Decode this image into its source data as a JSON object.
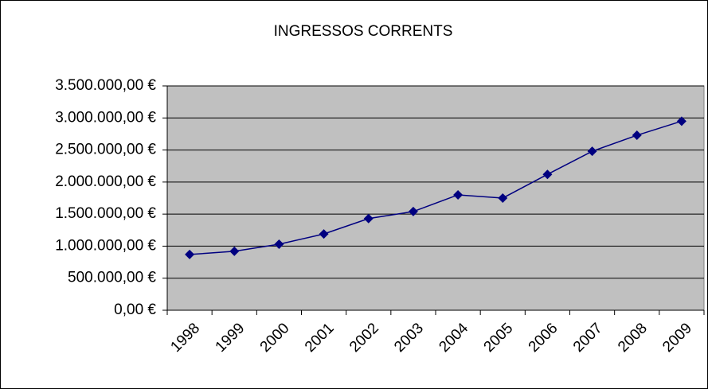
{
  "chart_data": {
    "type": "line",
    "title": "INGRESSOS CORRENTS",
    "categories": [
      "1998",
      "1999",
      "2000",
      "2001",
      "2002",
      "2003",
      "2004",
      "2005",
      "2006",
      "2007",
      "2008",
      "2009"
    ],
    "series": [
      {
        "name": "Ingressos corrents",
        "color": "#000080",
        "values": [
          870000,
          920000,
          1030000,
          1190000,
          1430000,
          1540000,
          1800000,
          1750000,
          2120000,
          2480000,
          2730000,
          2950000
        ]
      }
    ],
    "ylim": [
      0,
      3500000
    ],
    "yticks": [
      {
        "value": 0,
        "label": "0,00 €"
      },
      {
        "value": 500000,
        "label": "500.000,00 €"
      },
      {
        "value": 1000000,
        "label": "1.000.000,00 €"
      },
      {
        "value": 1500000,
        "label": "1.500.000,00 €"
      },
      {
        "value": 2000000,
        "label": "2.000.000,00 €"
      },
      {
        "value": 2500000,
        "label": "2.500.000,00 €"
      },
      {
        "value": 3000000,
        "label": "3.000.000,00 €"
      },
      {
        "value": 3500000,
        "label": "3.500.000,00 €"
      }
    ],
    "grid": true,
    "plot_background": "#c0c0c0"
  }
}
